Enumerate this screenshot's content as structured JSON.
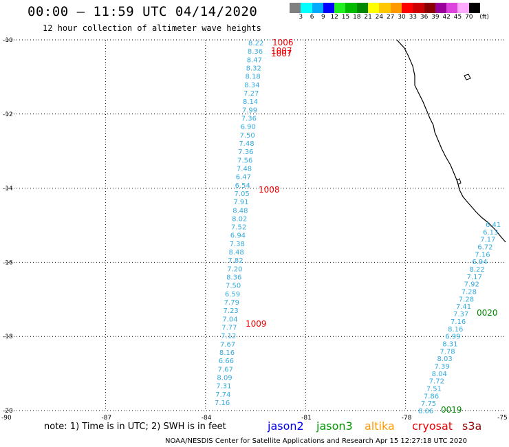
{
  "header": {
    "title": "00:00 – 11:59 UTC 04/14/2020",
    "subtitle": "12 hour collection of altimeter wave heights"
  },
  "legend": {
    "unit": "(ft)",
    "colors": [
      "#808080",
      "#00ffff",
      "#00aaff",
      "#0000ff",
      "#22ee22",
      "#00bb00",
      "#008800",
      "#ffff00",
      "#ffc800",
      "#ff9900",
      "#ff0000",
      "#cc0000",
      "#880000",
      "#990099",
      "#dd44dd",
      "#ffaaff",
      "#000000"
    ],
    "labels": [
      "3",
      "6",
      "9",
      "12",
      "15",
      "18",
      "21",
      "24",
      "27",
      "30",
      "33",
      "36",
      "39",
      "42",
      "45",
      "70"
    ]
  },
  "map": {
    "lat_range": [
      -20,
      -10
    ],
    "lon_range": [
      -90,
      -75
    ],
    "y_tick_labels": [
      "-10",
      "-12",
      "-14",
      "-16",
      "-18",
      "-20"
    ],
    "x_tick_labels": [
      "-90",
      "-87",
      "-84",
      "-81",
      "-78",
      "-75"
    ]
  },
  "track1": {
    "color": "#33aadd",
    "values": [
      "8.22",
      "8.36",
      "8.47",
      "8.32",
      "8.18",
      "8.34",
      "7.27",
      "8.14",
      "7.99",
      "7.36",
      "6.90",
      "7.50",
      "7.48",
      "7.36",
      "7.56",
      "7.48",
      "6.47",
      "6.54",
      "7.05",
      "7.91",
      "8.48",
      "8.02",
      "7.52",
      "6.94",
      "7.38",
      "8.48",
      "7.82",
      "7.20",
      "8.36",
      "7.50",
      "6.59",
      "7.79",
      "7.23",
      "7.04",
      "7.77",
      "7.12",
      "7.67",
      "8.16",
      "6.66",
      "7.67",
      "8.09",
      "7.31",
      "7.74",
      "7.16"
    ]
  },
  "track2": {
    "color": "#33aadd",
    "values": [
      "6.41",
      "6.13",
      "7.17",
      "6.72",
      "7.16",
      "6.94",
      "8.22",
      "7.17",
      "7.92",
      "7.28",
      "7.28",
      "7.41",
      "7.37",
      "7.16",
      "8.16",
      "6.99",
      "8.31",
      "7.78",
      "8.03",
      "7.39",
      "8.04",
      "7.72",
      "7.51",
      "7.86",
      "7.75",
      "8.06"
    ]
  },
  "pass_labels": [
    {
      "text": "1006",
      "color": "#ee0000"
    },
    {
      "text": "1007",
      "color": "#ee0000"
    },
    {
      "text": "1007",
      "color": "#ee0000"
    },
    {
      "text": "1008",
      "color": "#ee0000"
    },
    {
      "text": "1009",
      "color": "#ee0000"
    },
    {
      "text": "0020",
      "color": "#008800"
    },
    {
      "text": "0019",
      "color": "#008800"
    }
  ],
  "note": "note: 1) Time is in UTC; 2) SWH is in feet",
  "satellites": [
    {
      "name": "jason2",
      "color": "#0000ee"
    },
    {
      "name": "jason3",
      "color": "#009900"
    },
    {
      "name": "altika",
      "color": "#ff9900"
    },
    {
      "name": "cryosat",
      "color": "#ee0000"
    },
    {
      "name": "s3a",
      "color": "#990000"
    }
  ],
  "footer": "NOAA/NESDIS Center for Satellite Applications and Research   Apr 15 12:27:18 UTC 2020"
}
